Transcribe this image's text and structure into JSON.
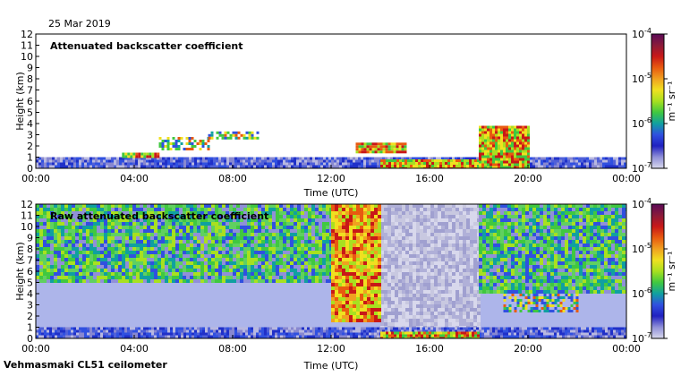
{
  "date": "25 Mar 2019",
  "footer": "Vehmasmaki CL51 ceilometer",
  "colorbar": {
    "ticks": [
      "10^-4",
      "10^-5",
      "10^-6",
      "10^-7"
    ],
    "label": "m⁻¹ sr⁻¹",
    "colors": [
      "#5b0a57",
      "#8a1a3a",
      "#c81818",
      "#e85a10",
      "#f0a020",
      "#f0e020",
      "#a8e020",
      "#40c840",
      "#10a0a0",
      "#3050e0",
      "#2020c0",
      "#9090d8",
      "#d8d8ec"
    ]
  },
  "chart_data": [
    {
      "type": "heatmap",
      "title": "Attenuated backscatter coefficient",
      "xlabel": "Time (UTC)",
      "ylabel": "Height (km)",
      "x_ticks": [
        "00:00",
        "04:00",
        "08:00",
        "12:00",
        "16:00",
        "20:00",
        "00:00"
      ],
      "y_ticks": [
        0,
        1,
        2,
        3,
        4,
        5,
        6,
        7,
        8,
        9,
        10,
        11,
        12
      ],
      "xlim": [
        0,
        24
      ],
      "ylim": [
        0,
        12
      ],
      "features": [
        {
          "t0": 0,
          "t1": 24,
          "h0": 0,
          "h1": 1.0,
          "level": "low"
        },
        {
          "t0": 3.5,
          "t1": 5,
          "h0": 1.0,
          "h1": 1.4,
          "level": "high"
        },
        {
          "t0": 5,
          "t1": 7,
          "h0": 1.8,
          "h1": 2.8,
          "level": "mid"
        },
        {
          "t0": 7,
          "t1": 9,
          "h0": 2.6,
          "h1": 3.3,
          "level": "mid"
        },
        {
          "t0": 13,
          "t1": 15,
          "h0": 1.4,
          "h1": 2.3,
          "level": "high"
        },
        {
          "t0": 14,
          "t1": 18,
          "h0": 0,
          "h1": 0.8,
          "level": "high"
        },
        {
          "t0": 18,
          "t1": 20,
          "h0": 0,
          "h1": 3.8,
          "level": "high"
        }
      ]
    },
    {
      "type": "heatmap",
      "title": "Raw attenuated backscatter coefficient",
      "xlabel": "Time (UTC)",
      "ylabel": "Height (km)",
      "x_ticks": [
        "00:00",
        "04:00",
        "08:00",
        "12:00",
        "16:00",
        "20:00",
        "00:00"
      ],
      "y_ticks": [
        0,
        1,
        2,
        3,
        4,
        5,
        6,
        7,
        8,
        9,
        10,
        11,
        12
      ],
      "xlim": [
        0,
        24
      ],
      "ylim": [
        0,
        12
      ],
      "features": [
        {
          "t0": 0,
          "t1": 14,
          "h0": 5,
          "h1": 12,
          "level": "noise-green"
        },
        {
          "t0": 14,
          "t1": 18,
          "h0": 1,
          "h1": 12,
          "level": "gap"
        },
        {
          "t0": 18,
          "t1": 24,
          "h0": 4,
          "h1": 12,
          "level": "noise-green"
        },
        {
          "t0": 0,
          "t1": 24,
          "h0": 0,
          "h1": 1.0,
          "level": "low"
        },
        {
          "t0": 12,
          "t1": 14,
          "h0": 1.5,
          "h1": 12,
          "level": "noise-warm"
        },
        {
          "t0": 19,
          "t1": 22,
          "h0": 2.5,
          "h1": 4.0,
          "level": "mid"
        },
        {
          "t0": 14,
          "t1": 18,
          "h0": 0,
          "h1": 0.6,
          "level": "high"
        }
      ]
    }
  ]
}
